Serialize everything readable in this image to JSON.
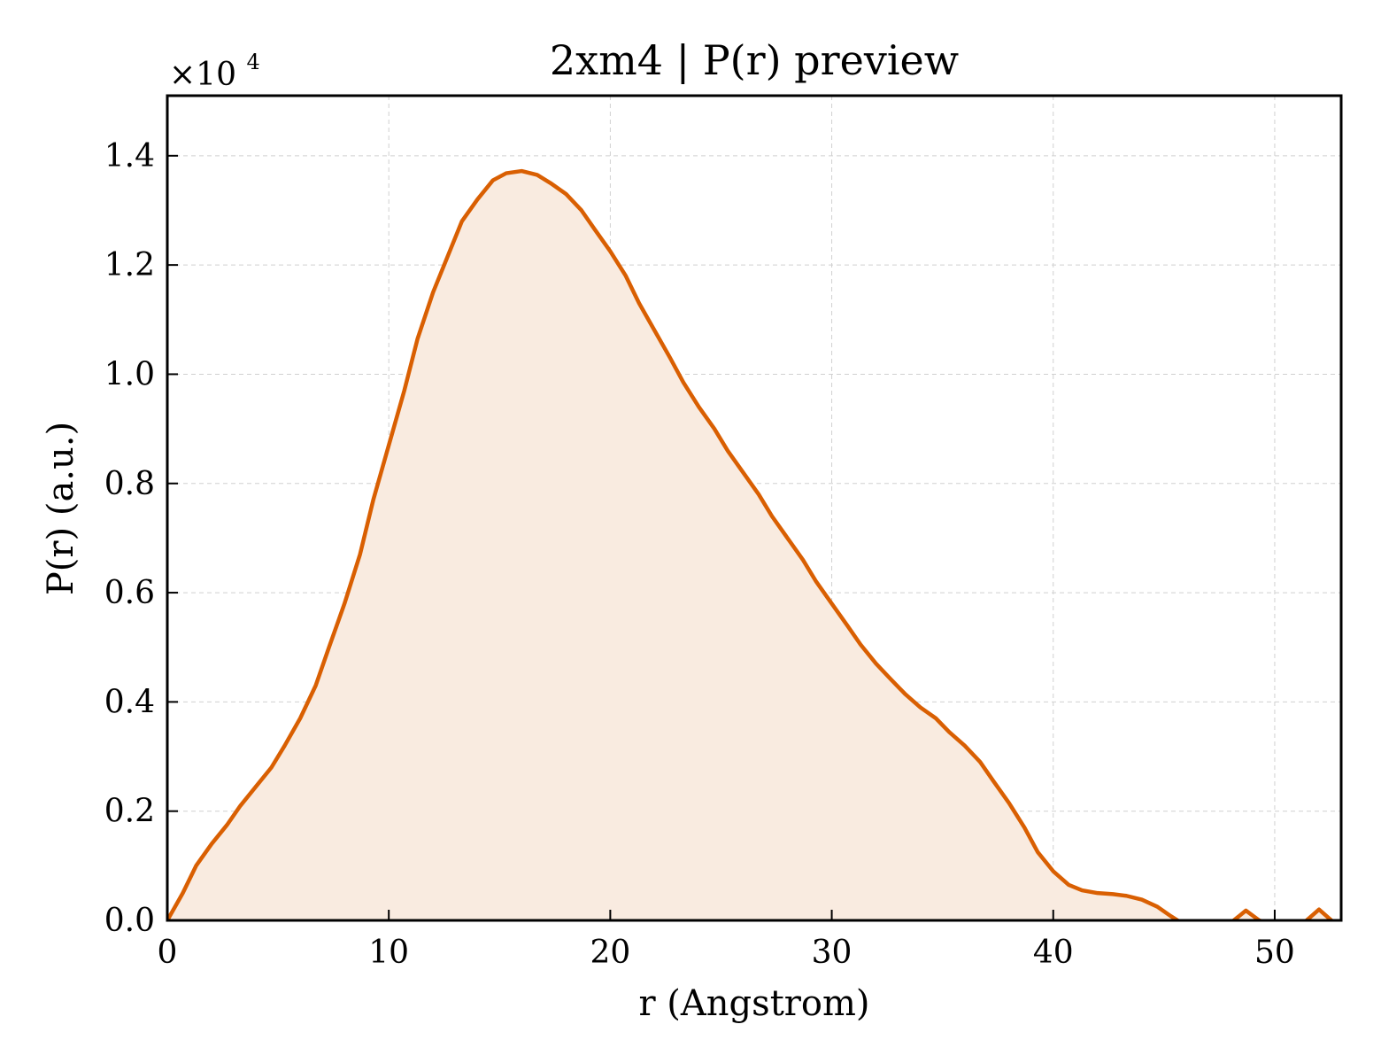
{
  "chart_data": {
    "type": "area",
    "title": "2xm4 | P(r) preview",
    "xlabel": "r (Angstrom)",
    "ylabel": "P(r) (a.u.)",
    "y_multiplier_label": "×10",
    "y_multiplier_exponent": "4",
    "xlim": [
      0,
      53
    ],
    "ylim": [
      0,
      1.51
    ],
    "y_scale_factor": 10000,
    "xticks": [
      0,
      10,
      20,
      30,
      40,
      50
    ],
    "xtick_labels": [
      "0",
      "10",
      "20",
      "30",
      "40",
      "50"
    ],
    "yticks": [
      0.0,
      0.2,
      0.4,
      0.6,
      0.8,
      1.0,
      1.2,
      1.4
    ],
    "ytick_labels": [
      "0.0",
      "0.2",
      "0.4",
      "0.6",
      "0.8",
      "1.0",
      "1.2",
      "1.4"
    ],
    "grid": true,
    "line_color": "#d95f02",
    "fill_color": "#f9ebe0",
    "series": [
      {
        "x": [
          0,
          0.7,
          1.3,
          2.0,
          2.7,
          3.3,
          4.0,
          4.7,
          5.3,
          6.0,
          6.7,
          7.3,
          8.0,
          8.7,
          9.3,
          10.0,
          10.7,
          11.3,
          12.0,
          12.7,
          13.3,
          14.0,
          14.7,
          15.3,
          16.0,
          16.7,
          17.3,
          18.0,
          18.7,
          19.3,
          20.0,
          20.7,
          21.3,
          22.0,
          22.7,
          23.3,
          24.0,
          24.7,
          25.3,
          26.0,
          26.7,
          27.3,
          28.0,
          28.7,
          29.3,
          30.0,
          30.7,
          31.3,
          32.0,
          32.7,
          33.3,
          34.0,
          34.7,
          35.3,
          36.0,
          36.7,
          37.3,
          38.0,
          38.7,
          39.3,
          40.0,
          40.7,
          41.3,
          42.0,
          42.7,
          43.3,
          44.0,
          44.7,
          45.3,
          46.0,
          46.7,
          47.3,
          48.0,
          48.7,
          49.3,
          50.0,
          50.7,
          51.3,
          52.0,
          52.7,
          53.0
        ],
        "y": [
          0.0,
          0.05,
          0.1,
          0.14,
          0.175,
          0.21,
          0.245,
          0.28,
          0.32,
          0.37,
          0.43,
          0.5,
          0.58,
          0.67,
          0.77,
          0.87,
          0.97,
          1.065,
          1.15,
          1.22,
          1.28,
          1.32,
          1.355,
          1.368,
          1.372,
          1.365,
          1.35,
          1.33,
          1.3,
          1.265,
          1.225,
          1.18,
          1.13,
          1.08,
          1.03,
          0.985,
          0.94,
          0.9,
          0.86,
          0.82,
          0.78,
          0.74,
          0.7,
          0.66,
          0.62,
          0.58,
          0.54,
          0.505,
          0.47,
          0.44,
          0.415,
          0.39,
          0.37,
          0.345,
          0.32,
          0.29,
          0.255,
          0.215,
          0.17,
          0.125,
          0.09,
          0.065,
          0.055,
          0.05,
          0.048,
          0.045,
          0.038,
          0.025,
          0.008,
          -0.01,
          -0.02,
          -0.015,
          -0.005,
          0.018,
          0.0,
          -0.01,
          -0.015,
          -0.005,
          0.02,
          -0.005,
          -0.01
        ]
      }
    ]
  }
}
